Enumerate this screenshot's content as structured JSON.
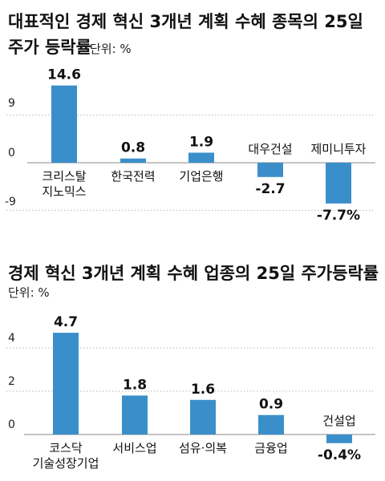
{
  "colors": {
    "bar": "#3a8fca"
  },
  "chart_data": [
    {
      "type": "bar",
      "title_lines": [
        "대표적인 경제 혁신 3개년 계획 수혜 종목의 25일",
        "주가 등락률"
      ],
      "unit": "단위: %",
      "yticks": [
        "9",
        "0",
        "-9"
      ],
      "ylim": [
        -9,
        15.5
      ],
      "categories": [
        "크리스탈\n지노믹스",
        "한국전력",
        "기업은행",
        "대우건설",
        "제미니투자"
      ],
      "values": [
        14.6,
        0.8,
        1.9,
        -2.7,
        -7.7
      ],
      "value_labels": [
        "14.6",
        "0.8",
        "1.9",
        "-2.7",
        "-7.7%"
      ]
    },
    {
      "type": "bar",
      "title_lines": [
        "경제 혁신 3개년 계획 수혜 업종의 25일 주가등락률"
      ],
      "unit": "단위: %",
      "yticks": [
        "4",
        "2",
        "0"
      ],
      "ylim": [
        -0.4,
        5.1
      ],
      "categories": [
        "코스닥\n기술성장기업",
        "서비스업",
        "섬유·의복",
        "금융업",
        "건설업"
      ],
      "values": [
        4.7,
        1.8,
        1.6,
        0.9,
        -0.4
      ],
      "value_labels": [
        "4.7",
        "1.8",
        "1.6",
        "0.9",
        "-0.4%"
      ]
    }
  ]
}
